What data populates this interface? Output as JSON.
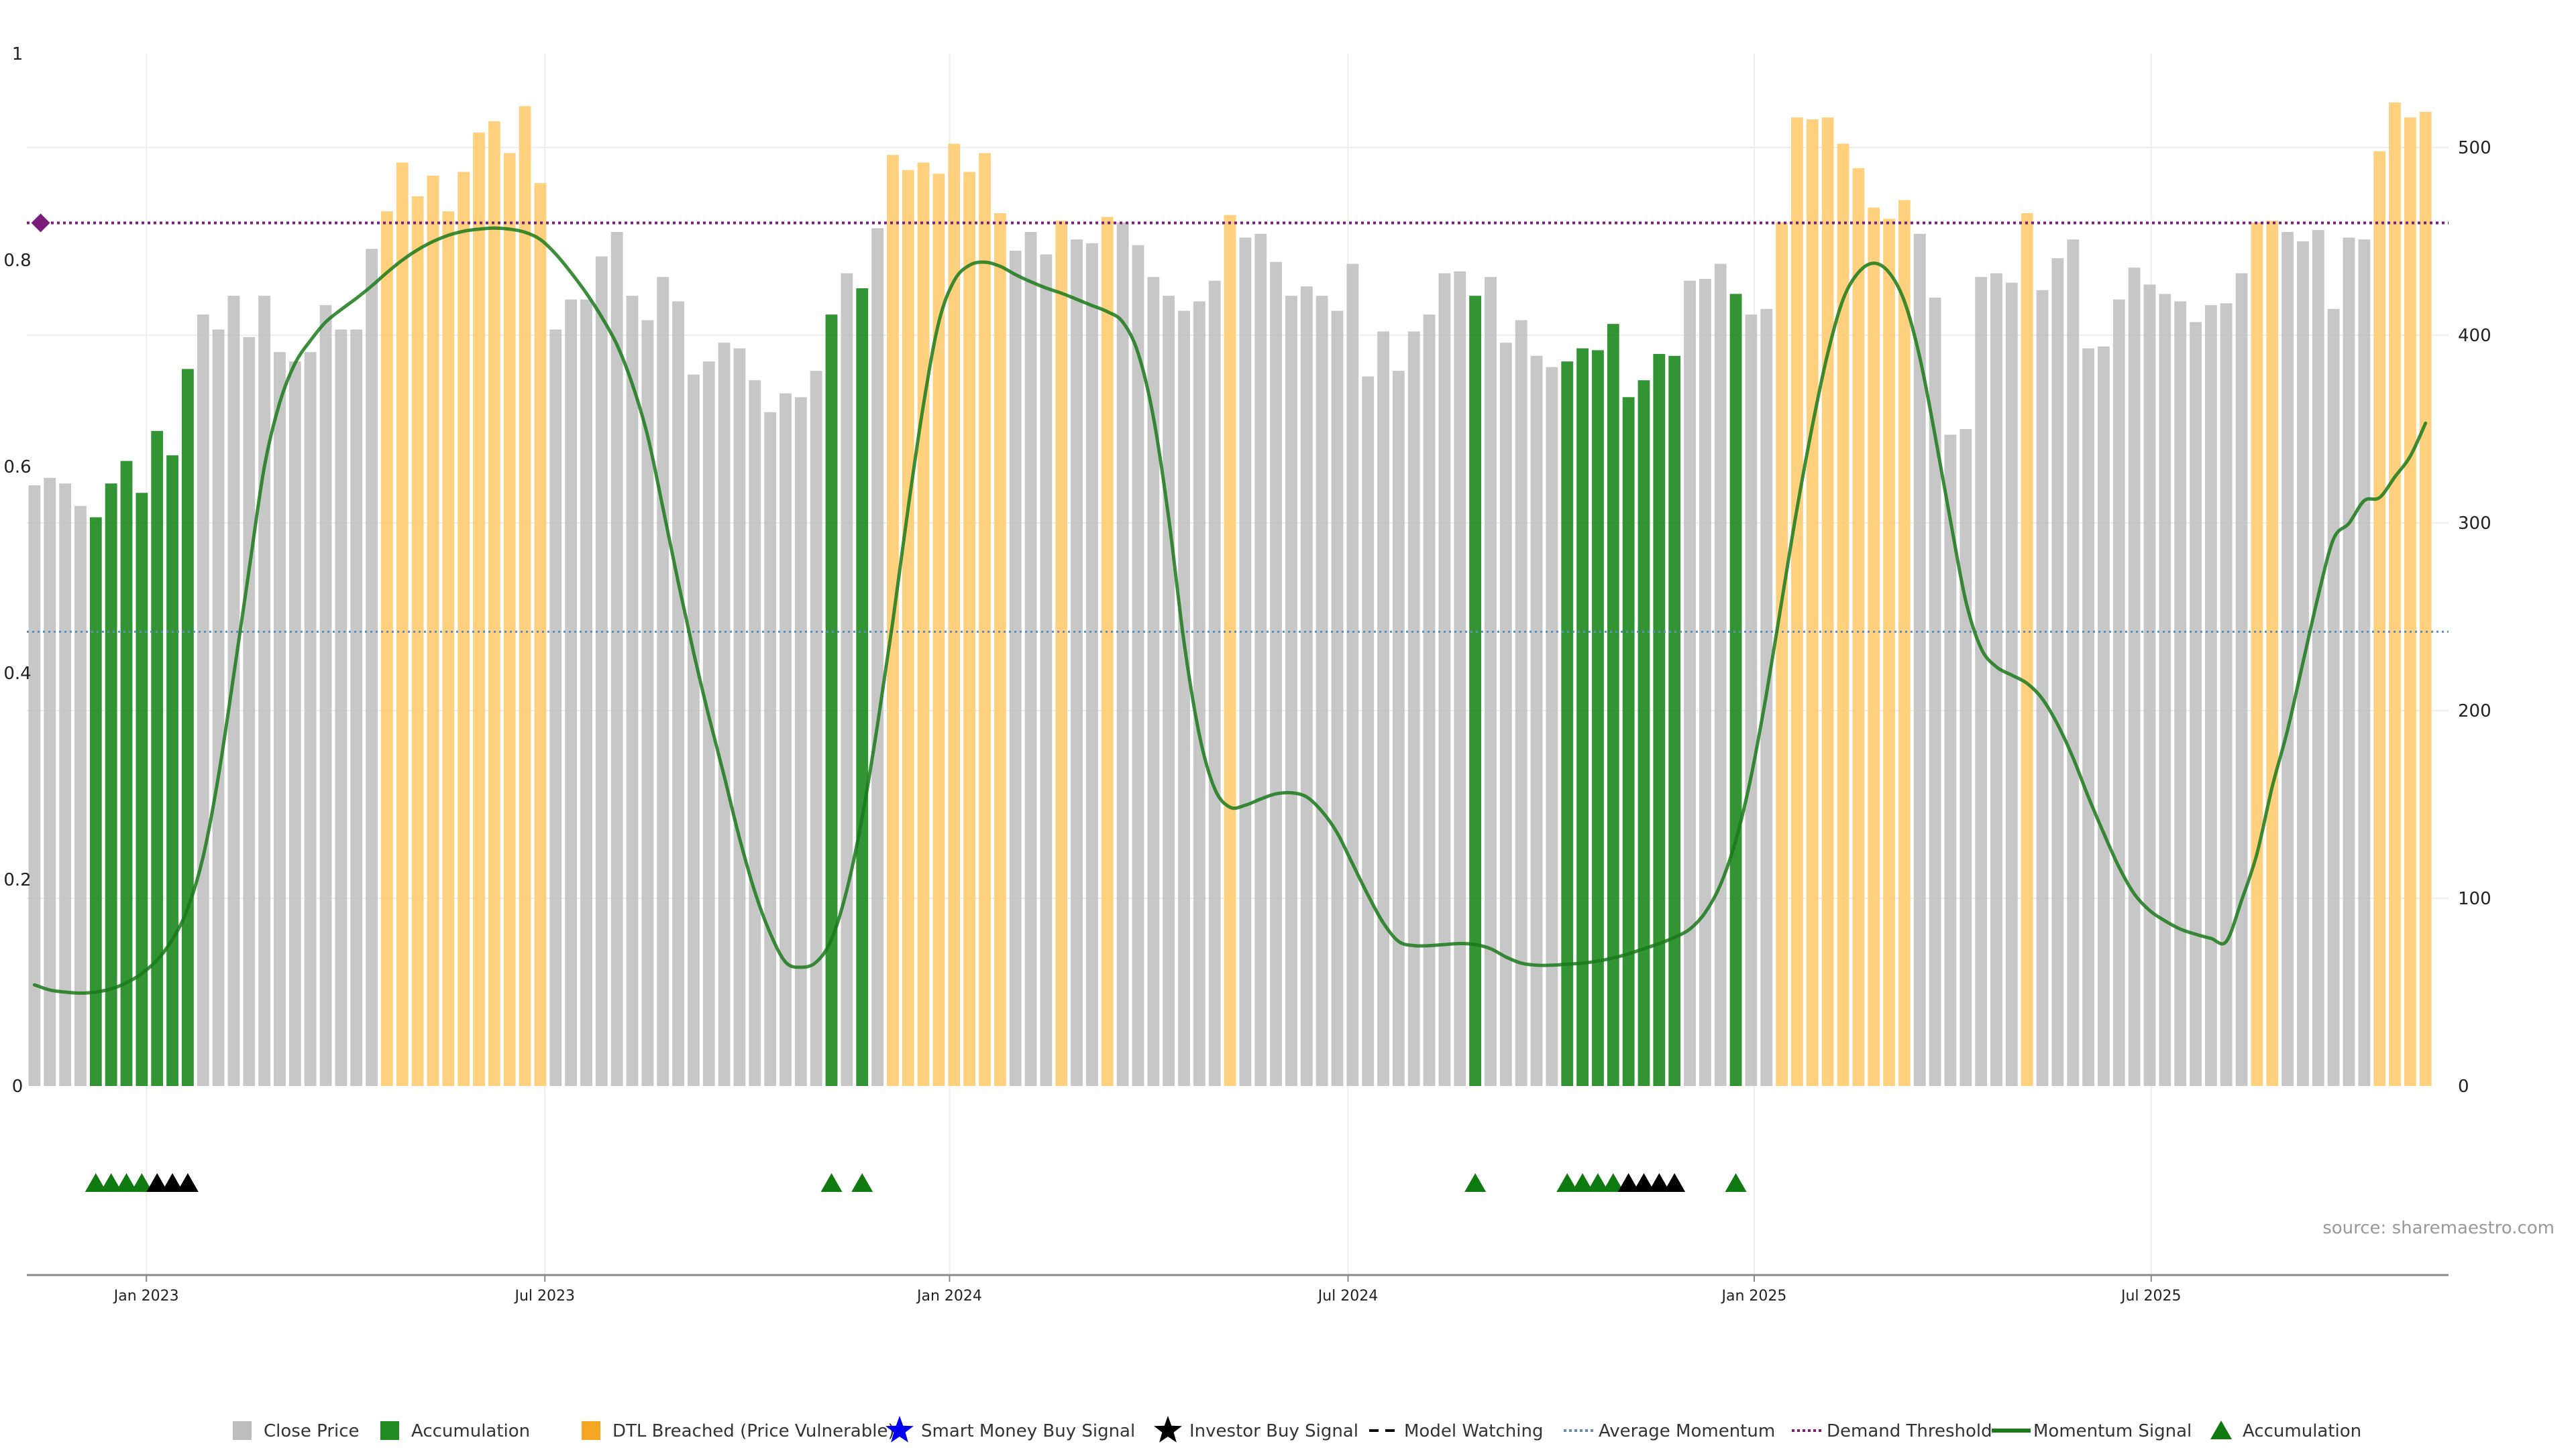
{
  "chart_data": {
    "type": "bar",
    "title": "",
    "colors": {
      "close": "#bdbdbd",
      "accumulation": "#228b22",
      "dtl": "#ffcc70",
      "momentum": "#1a7a1a",
      "average": "#5b8db8",
      "demand": "#7b1c7b",
      "signal_green": "#0f7a0f",
      "signal_black": "#000000"
    },
    "left_axis": {
      "ylim": [
        0,
        1
      ],
      "ticks": [
        "0",
        "0.2",
        "0.4",
        "0.6",
        "0.8",
        "1"
      ],
      "tick_values": [
        0,
        0.2,
        0.4,
        0.6,
        0.8,
        1
      ]
    },
    "right_axis": {
      "ylim": [
        0,
        550
      ],
      "ticks": [
        "0",
        "100",
        "200",
        "300",
        "400",
        "500"
      ],
      "tick_values": [
        0,
        100,
        200,
        300,
        400,
        500
      ]
    },
    "x_ticks": [
      {
        "label": "Jan 2023",
        "week": 7.3
      },
      {
        "label": "Jul 2023",
        "week": 33.3
      },
      {
        "label": "Jan 2024",
        "week": 59.7
      },
      {
        "label": "Jul 2024",
        "week": 85.7
      },
      {
        "label": "Jan 2025",
        "week": 112.2
      },
      {
        "label": "Jul 2025",
        "week": 138.1
      }
    ],
    "week_domain": [
      -0.5,
      157.5
    ],
    "bars": [
      [
        320,
        "c"
      ],
      [
        324,
        "c"
      ],
      [
        321,
        "c"
      ],
      [
        309,
        "c"
      ],
      [
        303,
        "a"
      ],
      [
        321,
        "a"
      ],
      [
        333,
        "a"
      ],
      [
        316,
        "a"
      ],
      [
        349,
        "a"
      ],
      [
        336,
        "a"
      ],
      [
        382,
        "a"
      ],
      [
        411,
        "c"
      ],
      [
        403,
        "c"
      ],
      [
        421,
        "c"
      ],
      [
        399,
        "c"
      ],
      [
        421,
        "c"
      ],
      [
        391,
        "c"
      ],
      [
        386,
        "c"
      ],
      [
        391,
        "c"
      ],
      [
        416,
        "c"
      ],
      [
        403,
        "c"
      ],
      [
        403,
        "c"
      ],
      [
        446,
        "c"
      ],
      [
        466,
        "d"
      ],
      [
        492,
        "d"
      ],
      [
        474,
        "d"
      ],
      [
        485,
        "d"
      ],
      [
        466,
        "d"
      ],
      [
        487,
        "d"
      ],
      [
        508,
        "d"
      ],
      [
        514,
        "d"
      ],
      [
        497,
        "d"
      ],
      [
        522,
        "d"
      ],
      [
        481,
        "d"
      ],
      [
        403,
        "c"
      ],
      [
        419,
        "c"
      ],
      [
        419,
        "c"
      ],
      [
        442,
        "c"
      ],
      [
        455,
        "c"
      ],
      [
        421,
        "c"
      ],
      [
        408,
        "c"
      ],
      [
        431,
        "c"
      ],
      [
        418,
        "c"
      ],
      [
        379,
        "c"
      ],
      [
        386,
        "c"
      ],
      [
        396,
        "c"
      ],
      [
        393,
        "c"
      ],
      [
        376,
        "c"
      ],
      [
        359,
        "c"
      ],
      [
        369,
        "c"
      ],
      [
        367,
        "c"
      ],
      [
        381,
        "c"
      ],
      [
        411,
        "a"
      ],
      [
        433,
        "c"
      ],
      [
        425,
        "a"
      ],
      [
        457,
        "c"
      ],
      [
        496,
        "d"
      ],
      [
        488,
        "d"
      ],
      [
        492,
        "d"
      ],
      [
        486,
        "d"
      ],
      [
        502,
        "d"
      ],
      [
        487,
        "d"
      ],
      [
        497,
        "d"
      ],
      [
        465,
        "d"
      ],
      [
        445,
        "c"
      ],
      [
        455,
        "c"
      ],
      [
        443,
        "c"
      ],
      [
        461,
        "d"
      ],
      [
        451,
        "c"
      ],
      [
        449,
        "c"
      ],
      [
        463,
        "d"
      ],
      [
        460,
        "c"
      ],
      [
        448,
        "c"
      ],
      [
        431,
        "c"
      ],
      [
        421,
        "c"
      ],
      [
        413,
        "c"
      ],
      [
        418,
        "c"
      ],
      [
        429,
        "c"
      ],
      [
        464,
        "d"
      ],
      [
        452,
        "c"
      ],
      [
        454,
        "c"
      ],
      [
        439,
        "c"
      ],
      [
        421,
        "c"
      ],
      [
        426,
        "c"
      ],
      [
        421,
        "c"
      ],
      [
        413,
        "c"
      ],
      [
        438,
        "c"
      ],
      [
        378,
        "c"
      ],
      [
        402,
        "c"
      ],
      [
        381,
        "c"
      ],
      [
        402,
        "c"
      ],
      [
        411,
        "c"
      ],
      [
        433,
        "c"
      ],
      [
        434,
        "c"
      ],
      [
        421,
        "a"
      ],
      [
        431,
        "c"
      ],
      [
        396,
        "c"
      ],
      [
        408,
        "c"
      ],
      [
        389,
        "c"
      ],
      [
        383,
        "c"
      ],
      [
        386,
        "a"
      ],
      [
        393,
        "a"
      ],
      [
        392,
        "a"
      ],
      [
        406,
        "a"
      ],
      [
        367,
        "a"
      ],
      [
        376,
        "a"
      ],
      [
        390,
        "a"
      ],
      [
        389,
        "a"
      ],
      [
        429,
        "c"
      ],
      [
        430,
        "c"
      ],
      [
        438,
        "c"
      ],
      [
        422,
        "a"
      ],
      [
        411,
        "c"
      ],
      [
        414,
        "c"
      ],
      [
        460,
        "d"
      ],
      [
        516,
        "d"
      ],
      [
        515,
        "d"
      ],
      [
        516,
        "d"
      ],
      [
        502,
        "d"
      ],
      [
        489,
        "d"
      ],
      [
        468,
        "d"
      ],
      [
        462,
        "d"
      ],
      [
        472,
        "d"
      ],
      [
        454,
        "c"
      ],
      [
        420,
        "c"
      ],
      [
        347,
        "c"
      ],
      [
        350,
        "c"
      ],
      [
        431,
        "c"
      ],
      [
        433,
        "c"
      ],
      [
        428,
        "c"
      ],
      [
        465,
        "d"
      ],
      [
        424,
        "c"
      ],
      [
        441,
        "c"
      ],
      [
        451,
        "c"
      ],
      [
        393,
        "c"
      ],
      [
        394,
        "c"
      ],
      [
        419,
        "c"
      ],
      [
        436,
        "c"
      ],
      [
        427,
        "c"
      ],
      [
        422,
        "c"
      ],
      [
        418,
        "c"
      ],
      [
        407,
        "c"
      ],
      [
        416,
        "c"
      ],
      [
        417,
        "c"
      ],
      [
        433,
        "c"
      ],
      [
        460,
        "d"
      ],
      [
        461,
        "d"
      ],
      [
        455,
        "c"
      ],
      [
        450,
        "c"
      ],
      [
        456,
        "c"
      ],
      [
        414,
        "c"
      ],
      [
        452,
        "c"
      ],
      [
        451,
        "c"
      ],
      [
        498,
        "d"
      ],
      [
        524,
        "d"
      ],
      [
        516,
        "d"
      ],
      [
        519,
        "d"
      ]
    ],
    "momentum_signal": [
      [
        0,
        0.098
      ],
      [
        1,
        0.093
      ],
      [
        2,
        0.091
      ],
      [
        3,
        0.09
      ],
      [
        4,
        0.091
      ],
      [
        5,
        0.094
      ],
      [
        6,
        0.1
      ],
      [
        7,
        0.109
      ],
      [
        8,
        0.122
      ],
      [
        9,
        0.142
      ],
      [
        10,
        0.172
      ],
      [
        11,
        0.222
      ],
      [
        12,
        0.3
      ],
      [
        13,
        0.398
      ],
      [
        14,
        0.5
      ],
      [
        15,
        0.6
      ],
      [
        16,
        0.662
      ],
      [
        17,
        0.7
      ],
      [
        18,
        0.722
      ],
      [
        19,
        0.74
      ],
      [
        20,
        0.752
      ],
      [
        21,
        0.763
      ],
      [
        22,
        0.775
      ],
      [
        23,
        0.788
      ],
      [
        24,
        0.8
      ],
      [
        25,
        0.81
      ],
      [
        26,
        0.818
      ],
      [
        27,
        0.824
      ],
      [
        28,
        0.828
      ],
      [
        29,
        0.83
      ],
      [
        30,
        0.831
      ],
      [
        31,
        0.83
      ],
      [
        32,
        0.827
      ],
      [
        33,
        0.82
      ],
      [
        34,
        0.806
      ],
      [
        35,
        0.788
      ],
      [
        36,
        0.768
      ],
      [
        37,
        0.745
      ],
      [
        38,
        0.718
      ],
      [
        39,
        0.68
      ],
      [
        40,
        0.63
      ],
      [
        41,
        0.56
      ],
      [
        42,
        0.488
      ],
      [
        43,
        0.42
      ],
      [
        44,
        0.358
      ],
      [
        45,
        0.3
      ],
      [
        46,
        0.24
      ],
      [
        47,
        0.188
      ],
      [
        48,
        0.148
      ],
      [
        49,
        0.12
      ],
      [
        50,
        0.115
      ],
      [
        51,
        0.12
      ],
      [
        52,
        0.142
      ],
      [
        53,
        0.19
      ],
      [
        54,
        0.26
      ],
      [
        55,
        0.35
      ],
      [
        56,
        0.45
      ],
      [
        57,
        0.56
      ],
      [
        58,
        0.66
      ],
      [
        59,
        0.74
      ],
      [
        60,
        0.78
      ],
      [
        61,
        0.795
      ],
      [
        62,
        0.798
      ],
      [
        63,
        0.794
      ],
      [
        64,
        0.786
      ],
      [
        65,
        0.779
      ],
      [
        66,
        0.773
      ],
      [
        67,
        0.768
      ],
      [
        68,
        0.762
      ],
      [
        69,
        0.756
      ],
      [
        70,
        0.75
      ],
      [
        71,
        0.74
      ],
      [
        72,
        0.71
      ],
      [
        73,
        0.648
      ],
      [
        74,
        0.55
      ],
      [
        75,
        0.43
      ],
      [
        76,
        0.34
      ],
      [
        77,
        0.288
      ],
      [
        78,
        0.27
      ],
      [
        79,
        0.272
      ],
      [
        80,
        0.278
      ],
      [
        81,
        0.283
      ],
      [
        82,
        0.284
      ],
      [
        83,
        0.28
      ],
      [
        84,
        0.266
      ],
      [
        85,
        0.245
      ],
      [
        86,
        0.215
      ],
      [
        87,
        0.185
      ],
      [
        88,
        0.158
      ],
      [
        89,
        0.14
      ],
      [
        90,
        0.136
      ],
      [
        91,
        0.136
      ],
      [
        92,
        0.137
      ],
      [
        93,
        0.138
      ],
      [
        94,
        0.137
      ],
      [
        95,
        0.133
      ],
      [
        96,
        0.125
      ],
      [
        97,
        0.119
      ],
      [
        98,
        0.117
      ],
      [
        99,
        0.117
      ],
      [
        100,
        0.118
      ],
      [
        101,
        0.119
      ],
      [
        102,
        0.121
      ],
      [
        103,
        0.124
      ],
      [
        104,
        0.128
      ],
      [
        105,
        0.133
      ],
      [
        106,
        0.138
      ],
      [
        107,
        0.144
      ],
      [
        108,
        0.152
      ],
      [
        109,
        0.168
      ],
      [
        110,
        0.195
      ],
      [
        111,
        0.238
      ],
      [
        112,
        0.3
      ],
      [
        113,
        0.38
      ],
      [
        114,
        0.47
      ],
      [
        115,
        0.56
      ],
      [
        116,
        0.64
      ],
      [
        117,
        0.71
      ],
      [
        118,
        0.762
      ],
      [
        119,
        0.788
      ],
      [
        120,
        0.797
      ],
      [
        121,
        0.788
      ],
      [
        122,
        0.76
      ],
      [
        123,
        0.706
      ],
      [
        124,
        0.63
      ],
      [
        125,
        0.548
      ],
      [
        126,
        0.47
      ],
      [
        127,
        0.424
      ],
      [
        128,
        0.406
      ],
      [
        129,
        0.398
      ],
      [
        130,
        0.39
      ],
      [
        131,
        0.375
      ],
      [
        132,
        0.35
      ],
      [
        133,
        0.318
      ],
      [
        134,
        0.28
      ],
      [
        135,
        0.245
      ],
      [
        136,
        0.212
      ],
      [
        137,
        0.186
      ],
      [
        138,
        0.17
      ],
      [
        139,
        0.16
      ],
      [
        140,
        0.152
      ],
      [
        141,
        0.147
      ],
      [
        142,
        0.143
      ],
      [
        143,
        0.14
      ],
      [
        144,
        0.18
      ],
      [
        145,
        0.225
      ],
      [
        146,
        0.29
      ],
      [
        147,
        0.345
      ],
      [
        148,
        0.41
      ],
      [
        149,
        0.475
      ],
      [
        150,
        0.53
      ],
      [
        151,
        0.545
      ],
      [
        152,
        0.567
      ],
      [
        153,
        0.57
      ],
      [
        154,
        0.59
      ],
      [
        155,
        0.61
      ],
      [
        156,
        0.642
      ]
    ],
    "demand_threshold": 0.836,
    "average_momentum": 0.44,
    "signals": [
      [
        4,
        "g"
      ],
      [
        5,
        "g"
      ],
      [
        6,
        "g"
      ],
      [
        7,
        "g"
      ],
      [
        8,
        "k"
      ],
      [
        9,
        "k"
      ],
      [
        10,
        "k"
      ],
      [
        52,
        "g"
      ],
      [
        54,
        "g"
      ],
      [
        94,
        "g"
      ],
      [
        100,
        "g"
      ],
      [
        101,
        "g"
      ],
      [
        102,
        "g"
      ],
      [
        103,
        "g"
      ],
      [
        104,
        "k"
      ],
      [
        105,
        "k"
      ],
      [
        106,
        "k"
      ],
      [
        107,
        "k"
      ],
      [
        111,
        "g"
      ]
    ],
    "legend": [
      {
        "label": "Close Price",
        "kind": "square",
        "color": "#bdbdbd"
      },
      {
        "label": "Accumulation",
        "kind": "square",
        "color": "#228b22"
      },
      {
        "label": "DTL Breached (Price Vulnerable)",
        "kind": "square",
        "color": "#f5a623"
      },
      {
        "label": "Smart Money Buy Signal",
        "kind": "star",
        "color": "#0000ee"
      },
      {
        "label": "Investor Buy Signal",
        "kind": "star",
        "color": "#000000"
      },
      {
        "label": "Model Watching",
        "kind": "dash",
        "color": "#000000"
      },
      {
        "label": "Average Momentum",
        "kind": "dotted",
        "color": "#5b8db8"
      },
      {
        "label": "Demand Threshold",
        "kind": "dotted",
        "color": "#7b1c7b"
      },
      {
        "label": "Momentum Signal",
        "kind": "line",
        "color": "#1a7a1a"
      },
      {
        "label": "Accumulation",
        "kind": "triangle",
        "color": "#0f7a0f"
      }
    ],
    "source": "source: sharemaestro.com"
  }
}
